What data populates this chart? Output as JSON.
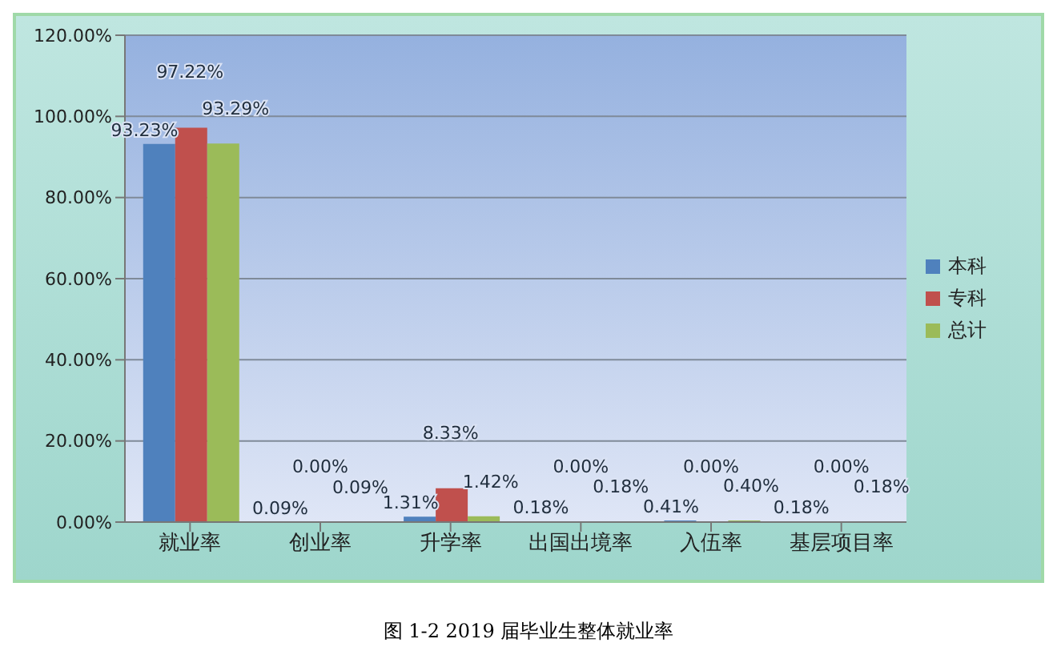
{
  "chart_data": {
    "type": "bar",
    "title": "图 1-2 2019 届毕业生整体就业率",
    "categories": [
      "就业率",
      "创业率",
      "升学率",
      "出国出境率",
      "入伍率",
      "基层项目率"
    ],
    "series": [
      {
        "name": "本科",
        "color": "#4f81bd",
        "values": [
          93.23,
          0.09,
          1.31,
          0.18,
          0.41,
          0.18
        ],
        "value_labels": [
          "93.23%",
          "0.09%",
          "1.31%",
          "0.18%",
          "0.41%",
          "0.18%"
        ]
      },
      {
        "name": "专科",
        "color": "#c0504d",
        "values": [
          97.22,
          0,
          8.33,
          0,
          0,
          0
        ],
        "value_labels": [
          "97.22%",
          "0.00%",
          "8.33%",
          "0.00%",
          "0.00%",
          "0.00%"
        ]
      },
      {
        "name": "总计",
        "color": "#9bbb59",
        "values": [
          93.29,
          0.09,
          1.42,
          0.18,
          0.4,
          0.18
        ],
        "value_labels": [
          "93.29%",
          "0.09%",
          "1.42%",
          "0.18%",
          "0.40%",
          "0.18%"
        ]
      }
    ],
    "ylim": [
      0,
      120
    ],
    "yticks": [
      {
        "value": 0,
        "label": "0.00%"
      },
      {
        "value": 20,
        "label": "20.00%"
      },
      {
        "value": 40,
        "label": "40.00%"
      },
      {
        "value": 60,
        "label": "60.00%"
      },
      {
        "value": 80,
        "label": "80.00%"
      },
      {
        "value": 100,
        "label": "100.00%"
      },
      {
        "value": 120,
        "label": "120.00%"
      }
    ],
    "grid": "y",
    "legend": "right"
  }
}
